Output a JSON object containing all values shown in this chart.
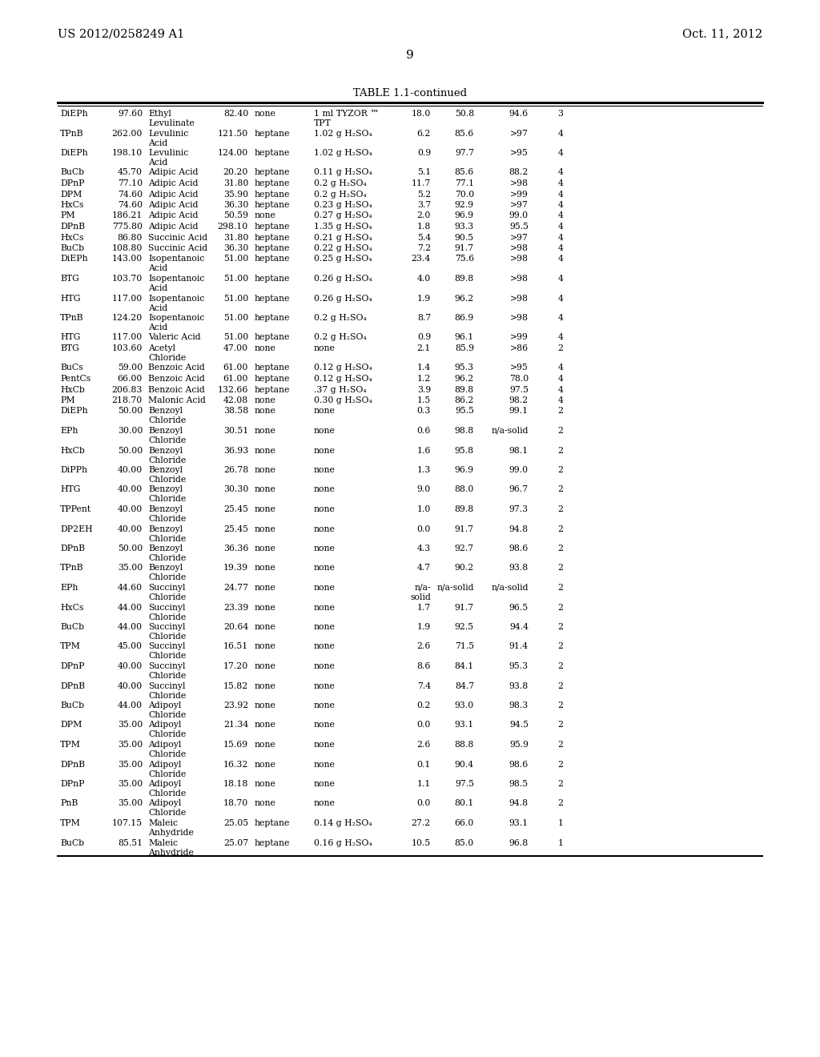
{
  "header_left": "US 2012/0258249 A1",
  "header_right": "Oct. 11, 2012",
  "page_number": "9",
  "table_title": "TABLE 1.1-continued",
  "bg_color": "#ffffff",
  "text_color": "#000000",
  "font_size": 7.8,
  "title_font_size": 9.5,
  "rows": [
    [
      "DiEPh",
      "97.60",
      "Ethyl\nLevulinate",
      "82.40",
      "none",
      "1 ml TYZOR ™\nTPT",
      "18.0",
      "50.8",
      "94.6",
      "3"
    ],
    [
      "TPnB",
      "262.00",
      "Levulinic\nAcid",
      "121.50",
      "heptane",
      "1.02 g H₂SO₄",
      "6.2",
      "85.6",
      ">97",
      "4"
    ],
    [
      "DiEPh",
      "198.10",
      "Levulinic\nAcid",
      "124.00",
      "heptane",
      "1.02 g H₂SO₄",
      "0.9",
      "97.7",
      ">95",
      "4"
    ],
    [
      "BuCb",
      "45.70",
      "Adipic Acid",
      "20.20",
      "heptane",
      "0.11 g H₂SO₄",
      "5.1",
      "85.6",
      "88.2",
      "4"
    ],
    [
      "DPnP",
      "77.10",
      "Adipic Acid",
      "31.80",
      "heptane",
      "0.2 g H₂SO₄",
      "11.7",
      "77.1",
      ">98",
      "4"
    ],
    [
      "DPM",
      "74.60",
      "Adipic Acid",
      "35.90",
      "heptane",
      "0.2 g H₂SO₄",
      "5.2",
      "70.0",
      ">99",
      "4"
    ],
    [
      "HxCs",
      "74.60",
      "Adipic Acid",
      "36.30",
      "heptane",
      "0.23 g H₂SO₄",
      "3.7",
      "92.9",
      ">97",
      "4"
    ],
    [
      "PM",
      "186.21",
      "Adipic Acid",
      "50.59",
      "none",
      "0.27 g H₂SO₄",
      "2.0",
      "96.9",
      "99.0",
      "4"
    ],
    [
      "DPnB",
      "775.80",
      "Adipic Acid",
      "298.10",
      "heptane",
      "1.35 g H₂SO₄",
      "1.8",
      "93.3",
      "95.5",
      "4"
    ],
    [
      "HxCs",
      "86.80",
      "Succinic Acid",
      "31.80",
      "heptane",
      "0.21 g H₂SO₄",
      "5.4",
      "90.5",
      ">97",
      "4"
    ],
    [
      "BuCb",
      "108.80",
      "Succinic Acid",
      "36.30",
      "heptane",
      "0.22 g H₂SO₄",
      "7.2",
      "91.7",
      ">98",
      "4"
    ],
    [
      "DiEPh",
      "143.00",
      "Isopentanoic\nAcid",
      "51.00",
      "heptane",
      "0.25 g H₂SO₄",
      "23.4",
      "75.6",
      ">98",
      "4"
    ],
    [
      "BTG",
      "103.70",
      "Isopentanoic\nAcid",
      "51.00",
      "heptane",
      "0.26 g H₂SO₄",
      "4.0",
      "89.8",
      ">98",
      "4"
    ],
    [
      "HTG",
      "117.00",
      "Isopentanoic\nAcid",
      "51.00",
      "heptane",
      "0.26 g H₂SO₄",
      "1.9",
      "96.2",
      ">98",
      "4"
    ],
    [
      "TPnB",
      "124.20",
      "Isopentanoic\nAcid",
      "51.00",
      "heptane",
      "0.2 g H₂SO₄",
      "8.7",
      "86.9",
      ">98",
      "4"
    ],
    [
      "HTG",
      "117.00",
      "Valeric Acid",
      "51.00",
      "heptane",
      "0.2 g H₂SO₄",
      "0.9",
      "96.1",
      ">99",
      "4"
    ],
    [
      "BTG",
      "103.60",
      "Acetyl\nChloride",
      "47.00",
      "none",
      "none",
      "2.1",
      "85.9",
      ">86",
      "2"
    ],
    [
      "BuCs",
      "59.00",
      "Benzoic Acid",
      "61.00",
      "heptane",
      "0.12 g H₂SO₄",
      "1.4",
      "95.3",
      ">95",
      "4"
    ],
    [
      "PentCs",
      "66.00",
      "Benzoic Acid",
      "61.00",
      "heptane",
      "0.12 g H₂SO₄",
      "1.2",
      "96.2",
      "78.0",
      "4"
    ],
    [
      "HxCb",
      "206.83",
      "Benzoic Acid",
      "132.66",
      "heptane",
      ".37 g H₂SO₄",
      "3.9",
      "89.8",
      "97.5",
      "4"
    ],
    [
      "PM",
      "218.70",
      "Malonic Acid",
      "42.08",
      "none",
      "0.30 g H₂SO₄",
      "1.5",
      "86.2",
      "98.2",
      "4"
    ],
    [
      "DiEPh",
      "50.00",
      "Benzoyl\nChloride",
      "38.58",
      "none",
      "none",
      "0.3",
      "95.5",
      "99.1",
      "2"
    ],
    [
      "EPh",
      "30.00",
      "Benzoyl\nChloride",
      "30.51",
      "none",
      "none",
      "0.6",
      "98.8",
      "n/a-solid",
      "2"
    ],
    [
      "HxCb",
      "50.00",
      "Benzoyl\nChloride",
      "36.93",
      "none",
      "none",
      "1.6",
      "95.8",
      "98.1",
      "2"
    ],
    [
      "DiPPh",
      "40.00",
      "Benzoyl\nChloride",
      "26.78",
      "none",
      "none",
      "1.3",
      "96.9",
      "99.0",
      "2"
    ],
    [
      "HTG",
      "40.00",
      "Benzoyl\nChloride",
      "30.30",
      "none",
      "none",
      "9.0",
      "88.0",
      "96.7",
      "2"
    ],
    [
      "TPPent",
      "40.00",
      "Benzoyl\nChloride",
      "25.45",
      "none",
      "none",
      "1.0",
      "89.8",
      "97.3",
      "2"
    ],
    [
      "DP2EH",
      "40.00",
      "Benzoyl\nChloride",
      "25.45",
      "none",
      "none",
      "0.0",
      "91.7",
      "94.8",
      "2"
    ],
    [
      "DPnB",
      "50.00",
      "Benzoyl\nChloride",
      "36.36",
      "none",
      "none",
      "4.3",
      "92.7",
      "98.6",
      "2"
    ],
    [
      "TPnB",
      "35.00",
      "Benzoyl\nChloride",
      "19.39",
      "none",
      "none",
      "4.7",
      "90.2",
      "93.8",
      "2"
    ],
    [
      "EPh",
      "44.60",
      "Succinyl\nChloride",
      "24.77",
      "none",
      "none",
      "n/a-\nsolid",
      "n/a-solid",
      "n/a-solid",
      "2"
    ],
    [
      "HxCs",
      "44.00",
      "Succinyl\nChloride",
      "23.39",
      "none",
      "none",
      "1.7",
      "91.7",
      "96.5",
      "2"
    ],
    [
      "BuCb",
      "44.00",
      "Succinyl\nChloride",
      "20.64",
      "none",
      "none",
      "1.9",
      "92.5",
      "94.4",
      "2"
    ],
    [
      "TPM",
      "45.00",
      "Succinyl\nChloride",
      "16.51",
      "none",
      "none",
      "2.6",
      "71.5",
      "91.4",
      "2"
    ],
    [
      "DPnP",
      "40.00",
      "Succinyl\nChloride",
      "17.20",
      "none",
      "none",
      "8.6",
      "84.1",
      "95.3",
      "2"
    ],
    [
      "DPnB",
      "40.00",
      "Succinyl\nChloride",
      "15.82",
      "none",
      "none",
      "7.4",
      "84.7",
      "93.8",
      "2"
    ],
    [
      "BuCb",
      "44.00",
      "Adipoyl\nChloride",
      "23.92",
      "none",
      "none",
      "0.2",
      "93.0",
      "98.3",
      "2"
    ],
    [
      "DPM",
      "35.00",
      "Adipoyl\nChloride",
      "21.34",
      "none",
      "none",
      "0.0",
      "93.1",
      "94.5",
      "2"
    ],
    [
      "TPM",
      "35.00",
      "Adipoyl\nChloride",
      "15.69",
      "none",
      "none",
      "2.6",
      "88.8",
      "95.9",
      "2"
    ],
    [
      "DPnB",
      "35.00",
      "Adipoyl\nChloride",
      "16.32",
      "none",
      "none",
      "0.1",
      "90.4",
      "98.6",
      "2"
    ],
    [
      "DPnP",
      "35.00",
      "Adipoyl\nChloride",
      "18.18",
      "none",
      "none",
      "1.1",
      "97.5",
      "98.5",
      "2"
    ],
    [
      "PnB",
      "35.00",
      "Adipoyl\nChloride",
      "18.70",
      "none",
      "none",
      "0.0",
      "80.1",
      "94.8",
      "2"
    ],
    [
      "TPM",
      "107.15",
      "Maleic\nAnhydride",
      "25.05",
      "heptane",
      "0.14 g H₂SO₄",
      "27.2",
      "66.0",
      "93.1",
      "1"
    ],
    [
      "BuCb",
      "85.51",
      "Maleic\nAnhydride",
      "25.07",
      "heptane",
      "0.16 g H₂SO₄",
      "10.5",
      "85.0",
      "96.8",
      "1"
    ]
  ]
}
